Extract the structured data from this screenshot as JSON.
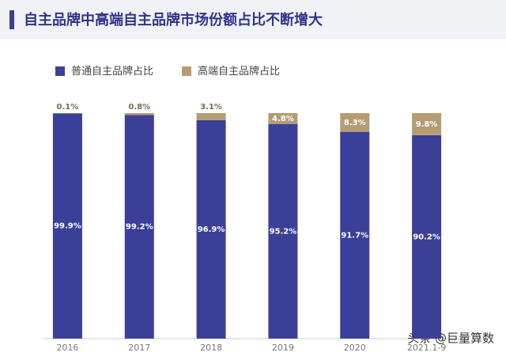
{
  "chart_data": {
    "type": "stacked_bar",
    "title": "自主品牌中高端自主品牌市场份额占比不断增大",
    "categories": [
      "2016",
      "2017",
      "2018",
      "2019",
      "2020",
      "2021.1-9"
    ],
    "series": [
      {
        "name": "普通自主品牌占比",
        "color": "#3a3f98",
        "values": [
          99.9,
          99.2,
          96.9,
          95.2,
          91.7,
          90.2
        ],
        "value_labels": [
          "99.9%",
          "99.2%",
          "96.9%",
          "95.2%",
          "91.7%",
          "90.2%"
        ]
      },
      {
        "name": "高端自主品牌占比",
        "color": "#b59c73",
        "values": [
          0.1,
          0.8,
          3.1,
          4.8,
          8.3,
          9.8
        ],
        "value_labels": [
          "0.1%",
          "0.8%",
          "3.1%",
          "4.8%",
          "8.3%",
          "9.8%"
        ]
      }
    ],
    "ylim": [
      0,
      100
    ],
    "watermark": "头条 @巨量算数"
  }
}
